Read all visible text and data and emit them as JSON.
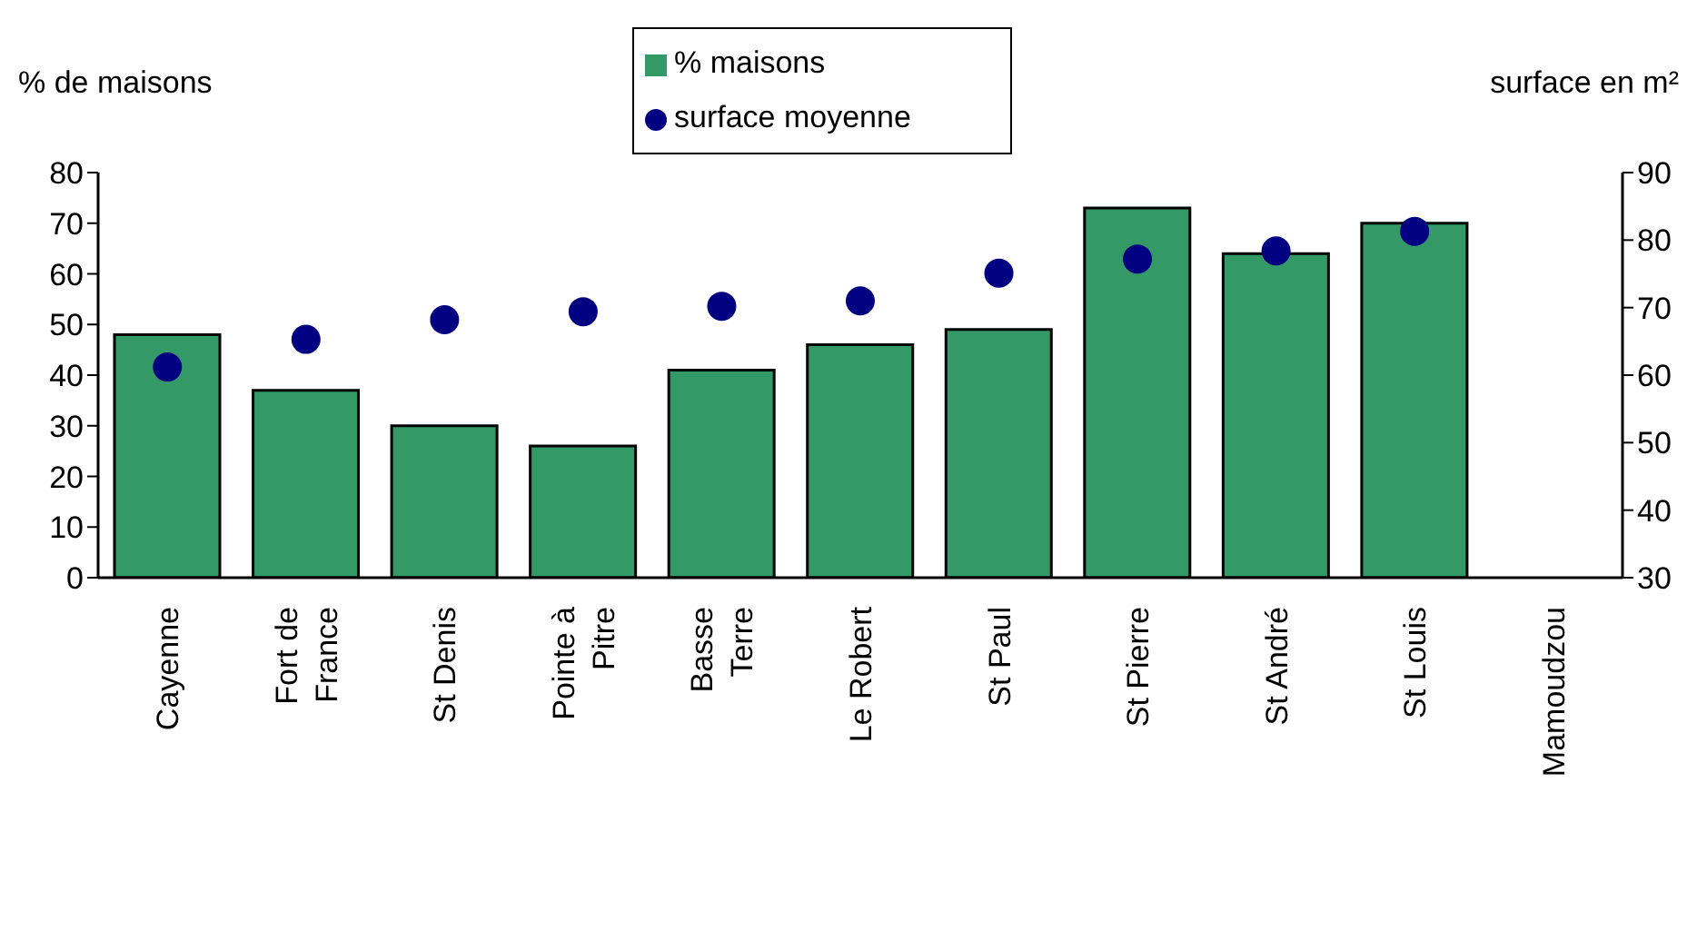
{
  "chart_data": {
    "type": "bar",
    "ylabel": "% de maisons",
    "y2label": "surface en m²",
    "categories": [
      "Cayenne",
      "Fort de France",
      "St Denis",
      "Pointe à Pitre",
      "Basse Terre",
      "Le Robert",
      "St Paul",
      "St Pierre",
      "St André",
      "St Louis",
      "Mamoudzou"
    ],
    "series": [
      {
        "name": "% maisons",
        "color": "#339966",
        "values": [
          48,
          37,
          30,
          26,
          41,
          46,
          49,
          73,
          64,
          70,
          null
        ]
      },
      {
        "name": "surface moyenne",
        "type": "scatter",
        "axis": "y2",
        "color": "#000080",
        "marker": "circle",
        "values": [
          61.2,
          65.3,
          68.2,
          69.4,
          70.2,
          71.0,
          75.1,
          77.2,
          78.4,
          81.3,
          null
        ]
      }
    ],
    "ylim": [
      0,
      80
    ],
    "yticks": [
      0,
      10,
      20,
      30,
      40,
      50,
      60,
      70,
      80
    ],
    "y2lim": [
      30,
      90
    ],
    "y2ticks": [
      30,
      40,
      50,
      60,
      70,
      80,
      90
    ],
    "grid": false,
    "legend": "top"
  }
}
